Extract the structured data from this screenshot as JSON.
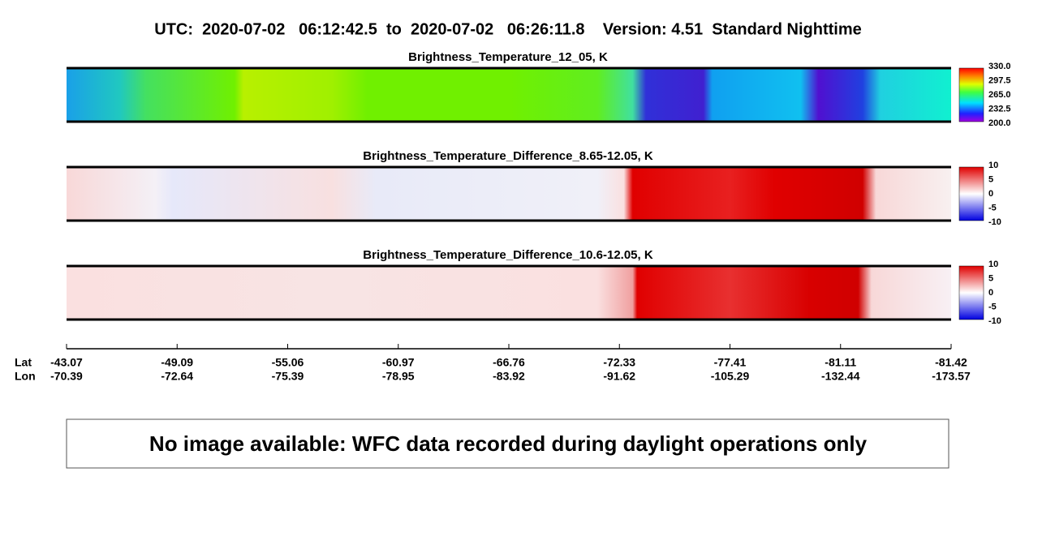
{
  "header": {
    "title": "UTC:  2020-07-02   06:12:42.5  to  2020-07-02   06:26:11.8    Version: 4.51  Standard Nighttime"
  },
  "panels": [
    {
      "title": "Brightness_Temperature_12_05, K",
      "colorbar_ticks": [
        "330.0",
        "297.5",
        "265.0",
        "232.5",
        "200.0"
      ]
    },
    {
      "title": "Brightness_Temperature_Difference_8.65-12.05, K",
      "colorbar_ticks": [
        "10",
        "5",
        "0",
        "-5",
        "-10"
      ]
    },
    {
      "title": "Brightness_Temperature_Difference_10.6-12.05, K",
      "colorbar_ticks": [
        "10",
        "5",
        "0",
        "-5",
        "-10"
      ]
    }
  ],
  "axis": {
    "lat_label": "Lat",
    "lon_label": "Lon",
    "lat": [
      "-43.07",
      "-49.09",
      "-55.06",
      "-60.97",
      "-66.76",
      "-72.33",
      "-77.41",
      "-81.11",
      "-81.42"
    ],
    "lon": [
      "-70.39",
      "-72.64",
      "-75.39",
      "-78.95",
      "-83.92",
      "-91.62",
      "-105.29",
      "-132.44",
      "-173.57"
    ]
  },
  "message": "No image available: WFC data recorded during daylight operations only"
}
